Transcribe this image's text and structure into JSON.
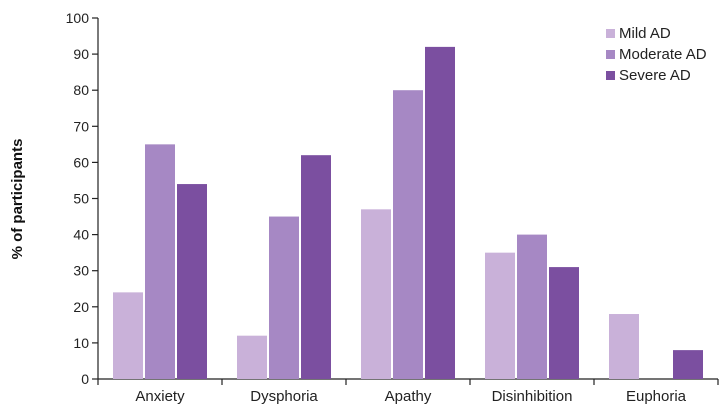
{
  "chart_data": {
    "type": "bar",
    "title": "",
    "xlabel": "",
    "ylabel": "% of participants",
    "ylim": [
      0,
      100
    ],
    "yticks": [
      0,
      10,
      20,
      30,
      40,
      50,
      60,
      70,
      80,
      90,
      100
    ],
    "grid": false,
    "legend_position": "top-right",
    "categories": [
      "Anxiety",
      "Dysphoria",
      "Apathy",
      "Disinhibition",
      "Euphoria"
    ],
    "series": [
      {
        "name": "Mild AD",
        "color": "#c9b1d9",
        "values": [
          24,
          12,
          47,
          35,
          18
        ]
      },
      {
        "name": "Moderate AD",
        "color": "#a688c4",
        "values": [
          65,
          45,
          80,
          40,
          null
        ]
      },
      {
        "name": "Severe AD",
        "color": "#7b4fa0",
        "values": [
          54,
          62,
          92,
          31,
          8
        ]
      }
    ]
  }
}
